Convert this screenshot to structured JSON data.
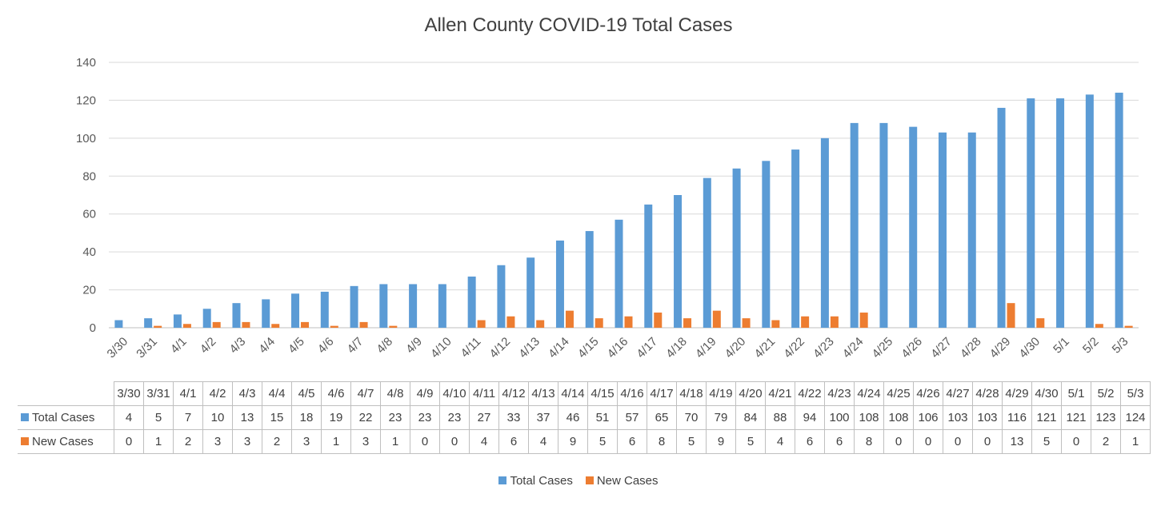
{
  "chart_data": {
    "type": "bar",
    "title": "Allen County COVID-19 Total Cases",
    "categories": [
      "3/30",
      "3/31",
      "4/1",
      "4/2",
      "4/3",
      "4/4",
      "4/5",
      "4/6",
      "4/7",
      "4/8",
      "4/9",
      "4/10",
      "4/11",
      "4/12",
      "4/13",
      "4/14",
      "4/15",
      "4/16",
      "4/17",
      "4/18",
      "4/19",
      "4/20",
      "4/21",
      "4/22",
      "4/23",
      "4/24",
      "4/25",
      "4/26",
      "4/27",
      "4/28",
      "4/29",
      "4/30",
      "5/1",
      "5/2",
      "5/3"
    ],
    "series": [
      {
        "name": "Total Cases",
        "color": "#5b9bd5",
        "values": [
          4,
          5,
          7,
          10,
          13,
          15,
          18,
          19,
          22,
          23,
          23,
          23,
          27,
          33,
          37,
          46,
          51,
          57,
          65,
          70,
          79,
          84,
          88,
          94,
          100,
          108,
          108,
          106,
          103,
          103,
          116,
          121,
          121,
          123,
          124
        ]
      },
      {
        "name": "New Cases",
        "color": "#ed7d31",
        "values": [
          0,
          1,
          2,
          3,
          3,
          2,
          3,
          1,
          3,
          1,
          0,
          0,
          4,
          6,
          4,
          9,
          5,
          6,
          8,
          5,
          9,
          5,
          4,
          6,
          6,
          8,
          0,
          0,
          0,
          0,
          13,
          5,
          0,
          2,
          1
        ]
      }
    ],
    "ylim": [
      0,
      140
    ],
    "yticks": [
      0,
      20,
      40,
      60,
      80,
      100,
      120,
      140
    ],
    "grid": true,
    "legend": "bottom",
    "data_table": true
  }
}
